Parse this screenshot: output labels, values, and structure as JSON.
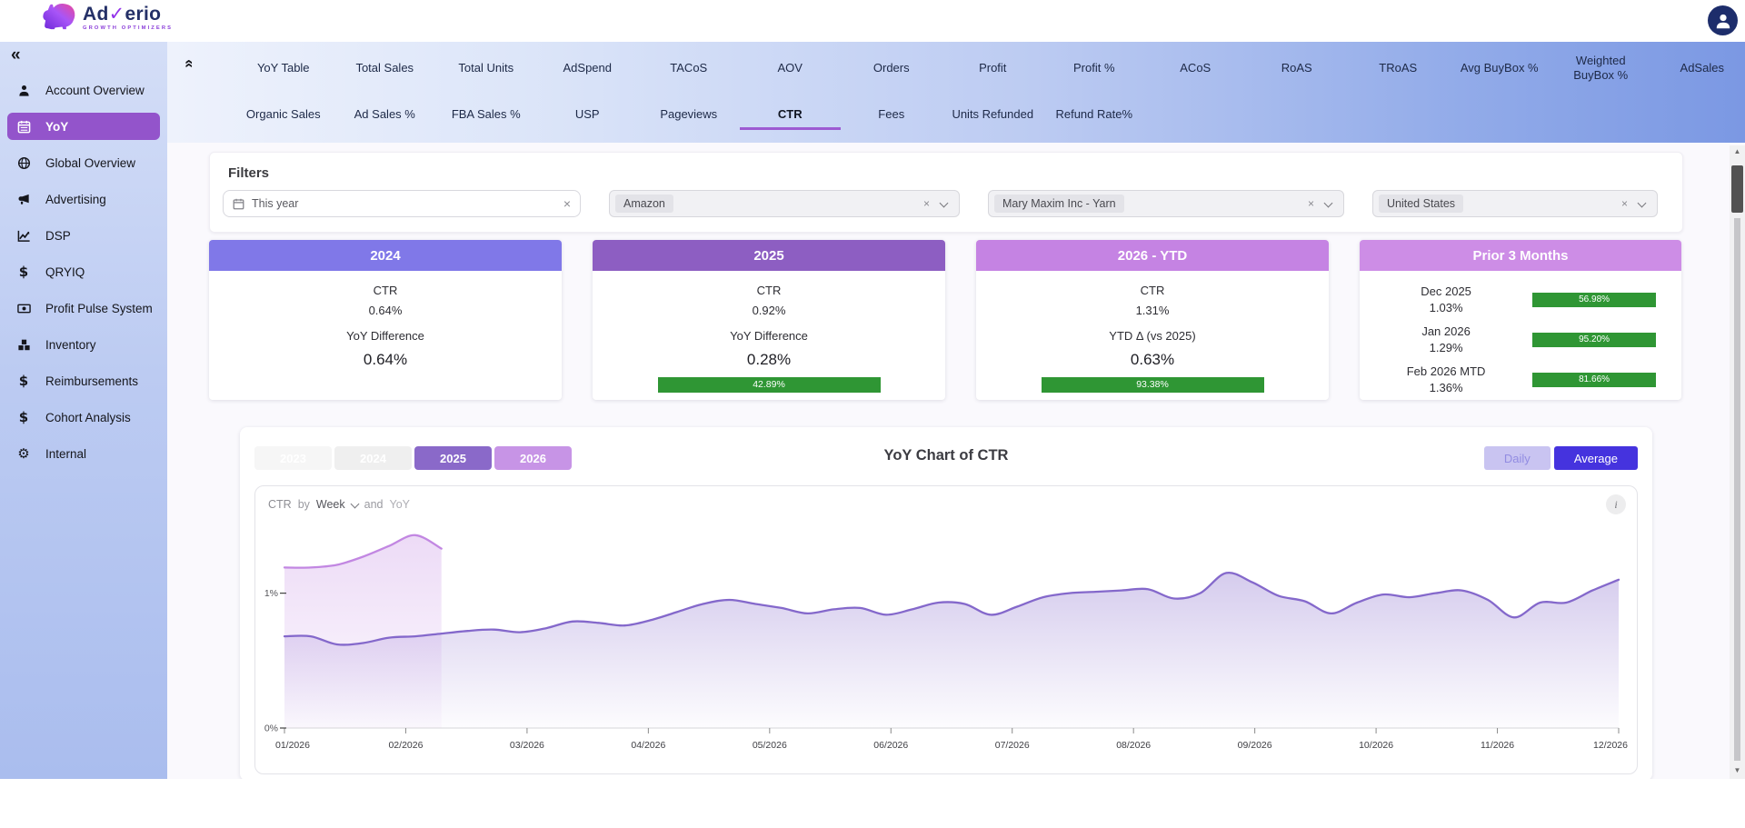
{
  "header": {
    "logo": {
      "brand_ad": "Ad",
      "brand_check": "✓",
      "brand_rest": "erio",
      "tagline": "GROWTH OPTIMIZERS"
    }
  },
  "sidebar": {
    "collapse_icon": "«",
    "items": [
      {
        "label": "Account Overview",
        "icon": "person-icon",
        "active": false
      },
      {
        "label": "YoY",
        "icon": "calendar-icon",
        "active": true
      },
      {
        "label": "Global Overview",
        "icon": "globe-icon",
        "active": false
      },
      {
        "label": "Advertising",
        "icon": "megaphone-icon",
        "active": false
      },
      {
        "label": "DSP",
        "icon": "line-chart-icon",
        "active": false
      },
      {
        "label": "QRYIQ",
        "icon": "dollar-icon",
        "active": false
      },
      {
        "label": "Profit Pulse System",
        "icon": "banknote-icon",
        "active": false
      },
      {
        "label": "Inventory",
        "icon": "boxes-icon",
        "active": false
      },
      {
        "label": "Reimbursements",
        "icon": "dollar-icon",
        "active": false
      },
      {
        "label": "Cohort Analysis",
        "icon": "dollar-icon",
        "active": false
      },
      {
        "label": "Internal",
        "icon": "gears-icon",
        "active": false
      }
    ]
  },
  "nav": {
    "collapse_icon": "«",
    "row1": [
      "YoY Table",
      "Total Sales",
      "Total Units",
      "AdSpend",
      "TACoS",
      "AOV",
      "Orders",
      "Profit",
      "Profit %",
      "ACoS",
      "RoAS",
      "TRoAS",
      "Avg BuyBox %",
      "Weighted BuyBox %",
      "AdSales"
    ],
    "row2": [
      "Organic Sales",
      "Ad Sales %",
      "FBA Sales %",
      "USP",
      "Pageviews",
      "CTR",
      "Fees",
      "Units Refunded",
      "Refund Rate%"
    ],
    "active_tab": "CTR"
  },
  "filters": {
    "title": "Filters",
    "date_filter": {
      "value": "This year",
      "clear_icon": "×"
    },
    "selects": [
      {
        "value": "Amazon",
        "clear_icon": "×"
      },
      {
        "value": "Mary Maxim Inc - Yarn",
        "clear_icon": "×"
      },
      {
        "value": "United States",
        "clear_icon": "×"
      }
    ]
  },
  "summary_cards": [
    {
      "title": "2024",
      "metric_label": "CTR",
      "metric_value": "0.64%",
      "diff_label": "YoY Difference",
      "diff_value": "0.64%",
      "bar": null
    },
    {
      "title": "2025",
      "metric_label": "CTR",
      "metric_value": "0.92%",
      "diff_label": "YoY Difference",
      "diff_value": "0.28%",
      "bar": "42.89%"
    },
    {
      "title": "2026 - YTD",
      "metric_label": "CTR",
      "metric_value": "1.31%",
      "diff_label": "YTD Δ (vs 2025)",
      "diff_value": "0.63%",
      "bar": "93.38%"
    }
  ],
  "prior_card": {
    "title": "Prior 3 Months",
    "rows": [
      {
        "label": "Dec 2025",
        "value": "1.03%",
        "bar": "56.98%"
      },
      {
        "label": "Jan 2026",
        "value": "1.29%",
        "bar": "95.20%"
      },
      {
        "label": "Feb 2026 MTD",
        "value": "1.36%",
        "bar": "81.66%"
      }
    ]
  },
  "chart_section": {
    "year_buttons": [
      {
        "label": "2023",
        "state": "disabled"
      },
      {
        "label": "2024",
        "state": "disabled"
      },
      {
        "label": "2025",
        "state": "active"
      },
      {
        "label": "2026",
        "state": "active"
      }
    ],
    "title": "YoY Chart of CTR",
    "mode_buttons": [
      {
        "label": "Daily",
        "active": false
      },
      {
        "label": "Average",
        "active": true
      }
    ],
    "controls": {
      "metric": "CTR",
      "by_text": "by",
      "granularity": "Week",
      "and_text": "and",
      "series_text": "YoY"
    },
    "info_icon": "i"
  },
  "chart_data": {
    "type": "area",
    "title": "YoY Chart of CTR",
    "x_unit": "week-of-year",
    "x_tick_labels": [
      "01/2026",
      "02/2026",
      "03/2026",
      "04/2026",
      "05/2026",
      "06/2026",
      "07/2026",
      "08/2026",
      "09/2026",
      "10/2026",
      "11/2026",
      "12/2026"
    ],
    "y_tick_labels": [
      "0%",
      "1%"
    ],
    "ylim": [
      0,
      1.55
    ],
    "values_unit": "percent",
    "grid": false,
    "legend": "none",
    "series": [
      {
        "name": "2025",
        "color": "#8468cb",
        "values": [
          0.68,
          0.68,
          0.62,
          0.63,
          0.67,
          0.68,
          0.7,
          0.72,
          0.73,
          0.71,
          0.74,
          0.79,
          0.78,
          0.76,
          0.8,
          0.86,
          0.92,
          0.95,
          0.92,
          0.89,
          0.85,
          0.88,
          0.89,
          0.84,
          0.88,
          0.93,
          0.92,
          0.84,
          0.9,
          0.97,
          1.0,
          1.01,
          1.02,
          1.03,
          0.96,
          1.0,
          1.15,
          1.08,
          0.98,
          0.94,
          0.85,
          0.93,
          0.99,
          0.97,
          1.0,
          1.02,
          0.95,
          0.82,
          0.93,
          0.93,
          1.02,
          1.1
        ]
      },
      {
        "name": "2026",
        "color": "#c287e2",
        "values": [
          1.19,
          1.19,
          1.21,
          1.27,
          1.35,
          1.43,
          1.33
        ]
      }
    ]
  },
  "colors": {
    "sidebar_active": "#9354cb",
    "tab_underline": "#9d5bd2",
    "card_2024": "#8078e8",
    "card_2025": "#8d5ec2",
    "card_2026": "#c583e3",
    "card_prior": "#cd8de6",
    "bar_green": "#2f9634",
    "mode_active": "#4533de"
  }
}
